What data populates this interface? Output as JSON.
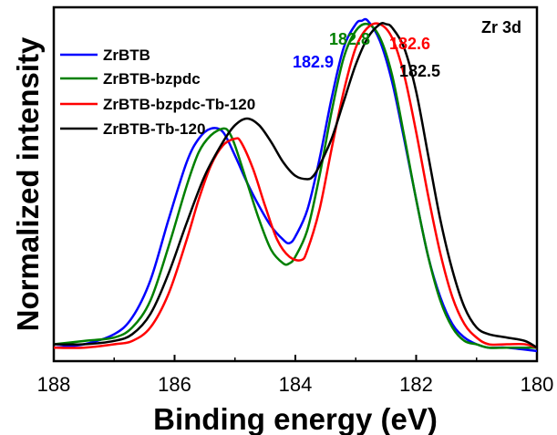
{
  "chart_data": {
    "type": "line",
    "title": "",
    "panel_label": "Zr 3d",
    "xlabel": "Binding energy (eV)",
    "ylabel": "Normalized intensity",
    "xlim": [
      188,
      180
    ],
    "ylim": [
      0,
      1.05
    ],
    "x_reversed": true,
    "y_ticks_shown": false,
    "xticks": [
      188,
      186,
      184,
      182,
      180
    ],
    "xtick_labels": [
      "188",
      "186",
      "184",
      "182",
      "180"
    ],
    "grid": false,
    "legend_position": "top-left",
    "series": [
      {
        "name": "ZrBTB",
        "color": "#0000ff",
        "x": [
          188.0,
          187.5,
          187.0,
          186.7,
          186.4,
          186.1,
          185.8,
          185.6,
          185.4,
          185.2,
          185.0,
          184.8,
          184.6,
          184.4,
          184.2,
          184.1,
          184.0,
          183.8,
          183.6,
          183.4,
          183.2,
          183.0,
          182.9,
          182.8,
          182.6,
          182.4,
          182.2,
          182.0,
          181.8,
          181.6,
          181.4,
          181.2,
          181.0,
          180.8,
          180.5,
          180.0
        ],
        "y": [
          0.04,
          0.05,
          0.08,
          0.13,
          0.24,
          0.42,
          0.59,
          0.66,
          0.69,
          0.68,
          0.61,
          0.53,
          0.46,
          0.4,
          0.36,
          0.35,
          0.37,
          0.45,
          0.6,
          0.78,
          0.93,
          1.0,
          1.01,
          1.01,
          0.95,
          0.83,
          0.66,
          0.48,
          0.31,
          0.19,
          0.11,
          0.07,
          0.05,
          0.04,
          0.04,
          0.03
        ]
      },
      {
        "name": "ZrBTB-bzpdc",
        "color": "#008000",
        "x": [
          188.0,
          187.5,
          187.0,
          186.7,
          186.4,
          186.1,
          185.8,
          185.6,
          185.4,
          185.2,
          185.1,
          185.0,
          184.8,
          184.6,
          184.4,
          184.2,
          184.1,
          184.0,
          183.8,
          183.6,
          183.4,
          183.2,
          183.0,
          182.8,
          182.6,
          182.4,
          182.2,
          182.0,
          181.8,
          181.6,
          181.4,
          181.2,
          181.0,
          180.8,
          180.5,
          180.0
        ],
        "y": [
          0.05,
          0.06,
          0.07,
          0.1,
          0.18,
          0.34,
          0.52,
          0.62,
          0.67,
          0.69,
          0.68,
          0.64,
          0.53,
          0.42,
          0.33,
          0.29,
          0.29,
          0.31,
          0.39,
          0.55,
          0.74,
          0.9,
          0.98,
          1.0,
          0.96,
          0.85,
          0.67,
          0.48,
          0.31,
          0.18,
          0.1,
          0.06,
          0.05,
          0.04,
          0.04,
          0.04
        ]
      },
      {
        "name": "ZrBTB-bzpdc-Tb-120",
        "color": "#ff0000",
        "x": [
          188.0,
          187.5,
          187.0,
          186.7,
          186.4,
          186.1,
          185.8,
          185.6,
          185.4,
          185.2,
          185.0,
          184.9,
          184.7,
          184.5,
          184.3,
          184.1,
          183.9,
          183.8,
          183.6,
          183.4,
          183.2,
          183.0,
          182.8,
          182.6,
          182.4,
          182.2,
          182.0,
          181.8,
          181.6,
          181.4,
          181.2,
          181.0,
          180.8,
          180.5,
          180.2,
          180.0
        ],
        "y": [
          0.04,
          0.04,
          0.05,
          0.06,
          0.1,
          0.2,
          0.36,
          0.48,
          0.58,
          0.64,
          0.66,
          0.65,
          0.57,
          0.46,
          0.36,
          0.31,
          0.3,
          0.33,
          0.45,
          0.63,
          0.8,
          0.93,
          0.99,
          1.0,
          0.96,
          0.85,
          0.68,
          0.49,
          0.32,
          0.19,
          0.11,
          0.07,
          0.05,
          0.05,
          0.05,
          0.04
        ]
      },
      {
        "name": "ZrBTB-Tb-120",
        "color": "#000000",
        "x": [
          188.0,
          187.5,
          187.0,
          186.7,
          186.4,
          186.1,
          185.8,
          185.5,
          185.2,
          185.0,
          184.8,
          184.6,
          184.4,
          184.2,
          184.0,
          183.8,
          183.7,
          183.6,
          183.4,
          183.2,
          183.0,
          182.8,
          182.6,
          182.5,
          182.4,
          182.2,
          182.0,
          181.8,
          181.6,
          181.4,
          181.2,
          181.0,
          180.8,
          180.5,
          180.2,
          180.0
        ],
        "y": [
          0.05,
          0.05,
          0.06,
          0.08,
          0.14,
          0.26,
          0.41,
          0.55,
          0.65,
          0.7,
          0.72,
          0.7,
          0.65,
          0.59,
          0.55,
          0.54,
          0.55,
          0.58,
          0.66,
          0.77,
          0.88,
          0.96,
          1.0,
          1.0,
          0.99,
          0.93,
          0.8,
          0.61,
          0.42,
          0.27,
          0.16,
          0.1,
          0.08,
          0.07,
          0.06,
          0.04
        ]
      }
    ],
    "peak_labels": [
      {
        "text": "182.9",
        "color": "#0000ff"
      },
      {
        "text": "182.8",
        "color": "#008000"
      },
      {
        "text": "182.6",
        "color": "#ff0000"
      },
      {
        "text": "182.5",
        "color": "#000000"
      }
    ]
  }
}
